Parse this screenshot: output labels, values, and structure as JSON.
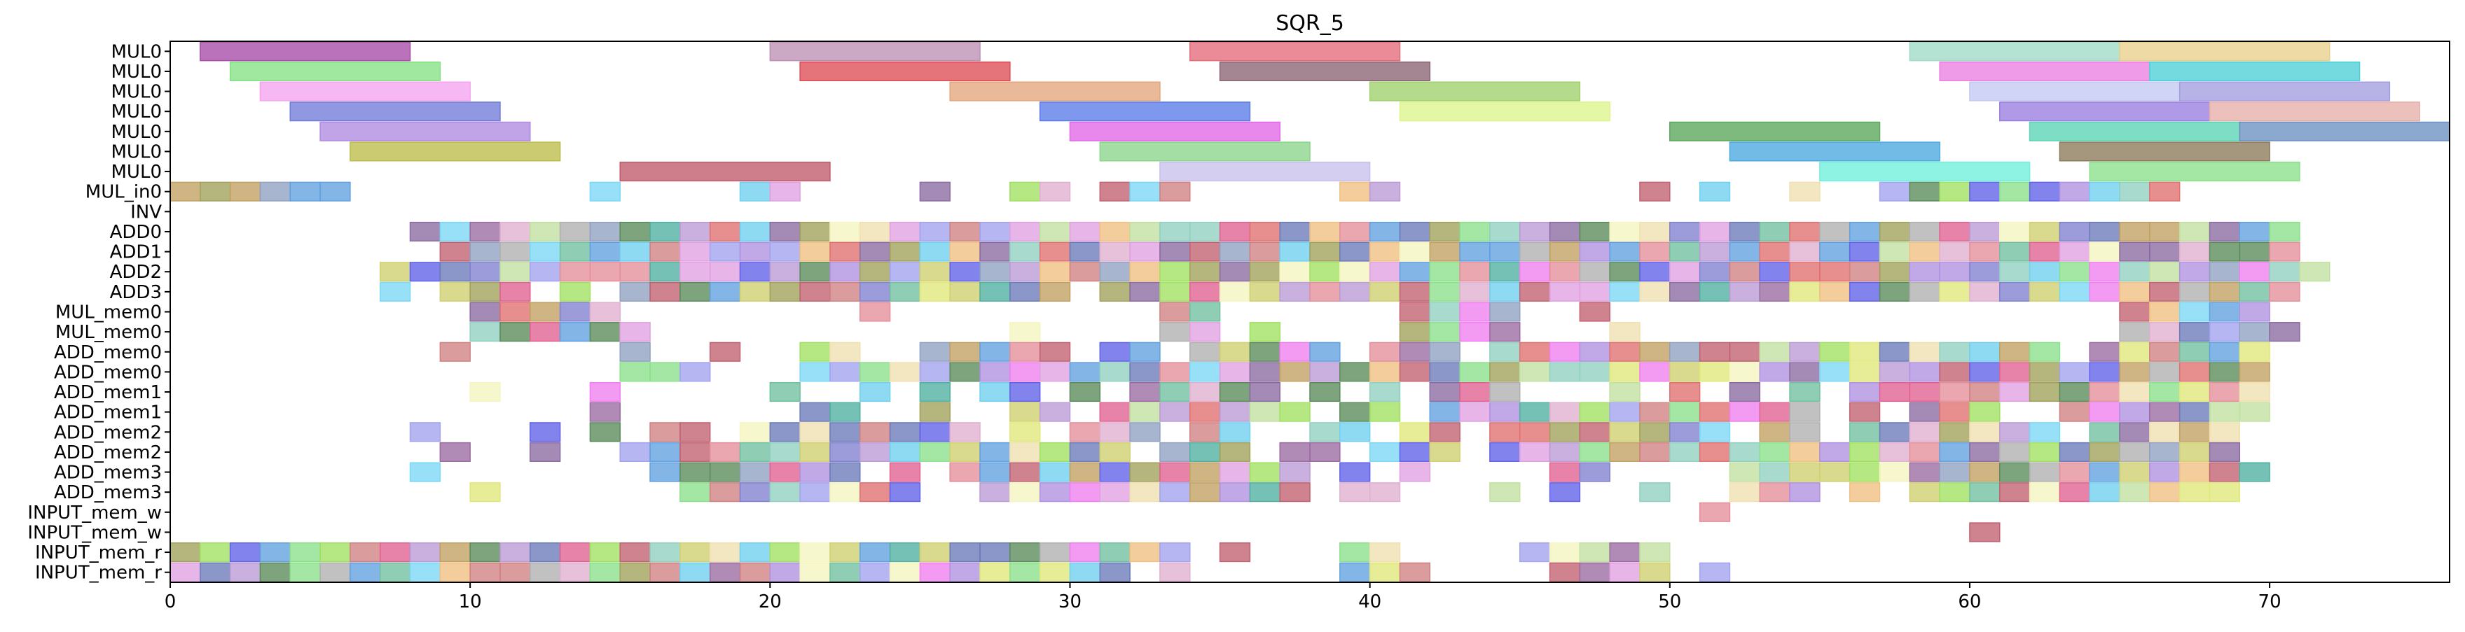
{
  "chart_data": {
    "type": "gantt",
    "title": "SQR_5",
    "xlabel": "",
    "ylabel": "",
    "xlim": [
      0,
      76
    ],
    "xticks": [
      0,
      10,
      20,
      30,
      40,
      50,
      60,
      70
    ],
    "grid": false,
    "legend": "none",
    "rows": [
      "MUL0",
      "MUL0",
      "MUL0",
      "MUL0",
      "MUL0",
      "MUL0",
      "MUL0",
      "MUL_in0",
      "INV",
      "ADD0",
      "ADD1",
      "ADD2",
      "ADD3",
      "MUL_mem0",
      "MUL_mem0",
      "ADD_mem0",
      "ADD_mem0",
      "ADD_mem1",
      "ADD_mem1",
      "ADD_mem2",
      "ADD_mem2",
      "ADD_mem3",
      "ADD_mem3",
      "INPUT_mem_w",
      "INPUT_mem_w",
      "INPUT_mem_r",
      "INPUT_mem_r"
    ],
    "bars": [
      {
        "row": 0,
        "start": 1,
        "end": 8,
        "color": "#a64ca6"
      },
      {
        "row": 0,
        "start": 20,
        "end": 27,
        "color": "#bc8fb3"
      },
      {
        "row": 0,
        "start": 34,
        "end": 41,
        "color": "#e56a7a"
      },
      {
        "row": 0,
        "start": 58,
        "end": 65,
        "color": "#9fdac6"
      },
      {
        "row": 0,
        "start": 65,
        "end": 72,
        "color": "#e8d08a"
      },
      {
        "row": 1,
        "start": 2,
        "end": 9,
        "color": "#85e085"
      },
      {
        "row": 1,
        "start": 21,
        "end": 28,
        "color": "#dc4c55"
      },
      {
        "row": 1,
        "start": 35,
        "end": 42,
        "color": "#8a6474"
      },
      {
        "row": 1,
        "start": 59,
        "end": 66,
        "color": "#ea7fe0"
      },
      {
        "row": 1,
        "start": 66,
        "end": 73,
        "color": "#4dcfd7"
      },
      {
        "row": 2,
        "start": 3,
        "end": 10,
        "color": "#f5a3f0"
      },
      {
        "row": 2,
        "start": 26,
        "end": 33,
        "color": "#e3a57c"
      },
      {
        "row": 2,
        "start": 40,
        "end": 47,
        "color": "#9fd06a"
      },
      {
        "row": 2,
        "start": 60,
        "end": 67,
        "color": "#c3c8f2"
      },
      {
        "row": 2,
        "start": 67,
        "end": 74,
        "color": "#a39ee0"
      },
      {
        "row": 3,
        "start": 4,
        "end": 11,
        "color": "#6f7bd8"
      },
      {
        "row": 3,
        "start": 29,
        "end": 36,
        "color": "#5a7be8"
      },
      {
        "row": 3,
        "start": 41,
        "end": 48,
        "color": "#dcf58a"
      },
      {
        "row": 3,
        "start": 61,
        "end": 68,
        "color": "#9a7ce0"
      },
      {
        "row": 3,
        "start": 68,
        "end": 75,
        "color": "#e8afa8"
      },
      {
        "row": 4,
        "start": 5,
        "end": 12,
        "color": "#b08be0"
      },
      {
        "row": 4,
        "start": 30,
        "end": 37,
        "color": "#e267e8"
      },
      {
        "row": 4,
        "start": 50,
        "end": 57,
        "color": "#5aa65a"
      },
      {
        "row": 4,
        "start": 62,
        "end": 69,
        "color": "#5ad5b5"
      },
      {
        "row": 4,
        "start": 69,
        "end": 76,
        "color": "#6a8fc0"
      },
      {
        "row": 5,
        "start": 6,
        "end": 13,
        "color": "#bcbc4a"
      },
      {
        "row": 5,
        "start": 31,
        "end": 38,
        "color": "#8ad58a"
      },
      {
        "row": 5,
        "start": 52,
        "end": 59,
        "color": "#4aa8e0"
      },
      {
        "row": 5,
        "start": 63,
        "end": 70,
        "color": "#8a7a5a"
      },
      {
        "row": 6,
        "start": 15,
        "end": 22,
        "color": "#c05a6a"
      },
      {
        "row": 6,
        "start": 33,
        "end": 40,
        "color": "#c8c0ec"
      },
      {
        "row": 6,
        "start": 55,
        "end": 62,
        "color": "#6ff0dc"
      },
      {
        "row": 6,
        "start": 64,
        "end": 71,
        "color": "#8ae08a"
      }
    ]
  }
}
